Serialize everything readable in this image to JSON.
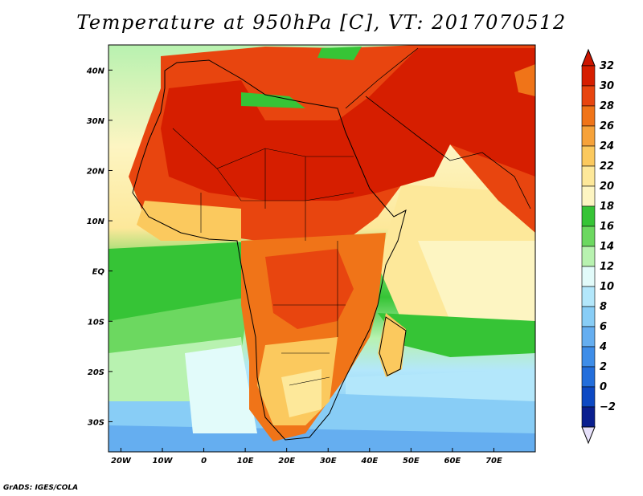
{
  "title": "Temperature at 950hPa [C], VT: 2017070512",
  "credit": "GrADS: IGES/COLA",
  "map": {
    "extent": {
      "lon": [
        -23,
        80
      ],
      "lat": [
        -36,
        45
      ]
    },
    "lat_ticks": [
      {
        "value": 40,
        "label": "40N"
      },
      {
        "value": 30,
        "label": "30N"
      },
      {
        "value": 20,
        "label": "20N"
      },
      {
        "value": 10,
        "label": "10N"
      },
      {
        "value": 0,
        "label": "EQ"
      },
      {
        "value": -10,
        "label": "10S"
      },
      {
        "value": -20,
        "label": "20S"
      },
      {
        "value": -30,
        "label": "30S"
      }
    ],
    "lon_ticks": [
      {
        "value": -20,
        "label": "20W"
      },
      {
        "value": -10,
        "label": "10W"
      },
      {
        "value": 0,
        "label": "0"
      },
      {
        "value": 10,
        "label": "10E"
      },
      {
        "value": 20,
        "label": "20E"
      },
      {
        "value": 30,
        "label": "30E"
      },
      {
        "value": 40,
        "label": "40E"
      },
      {
        "value": 50,
        "label": "50E"
      },
      {
        "value": 60,
        "label": "60E"
      },
      {
        "value": 70,
        "label": "70E"
      }
    ]
  },
  "colorbar": {
    "levels": [
      {
        "label": "32",
        "color": "#d61e00"
      },
      {
        "label": "30",
        "color": "#e8450f"
      },
      {
        "label": "28",
        "color": "#f07418"
      },
      {
        "label": "26",
        "color": "#f6a23a"
      },
      {
        "label": "24",
        "color": "#fbc95e"
      },
      {
        "label": "22",
        "color": "#fde89a"
      },
      {
        "label": "20",
        "color": "#fdf5c2"
      },
      {
        "label": "18",
        "color": "#36c436"
      },
      {
        "label": "16",
        "color": "#6cd860"
      },
      {
        "label": "14",
        "color": "#b8f2b0"
      },
      {
        "label": "12",
        "color": "#e2fbfa"
      },
      {
        "label": "10",
        "color": "#b3e7fb"
      },
      {
        "label": "8",
        "color": "#88cdf6"
      },
      {
        "label": "6",
        "color": "#65aef0"
      },
      {
        "label": "4",
        "color": "#3e8de8"
      },
      {
        "label": "2",
        "color": "#236edb"
      },
      {
        "label": "0",
        "color": "#0d49c3"
      },
      {
        "label": "−2",
        "color": "#0a1f8f"
      }
    ],
    "over_color": "#cc1500",
    "under_color": "#e6e0fa"
  }
}
